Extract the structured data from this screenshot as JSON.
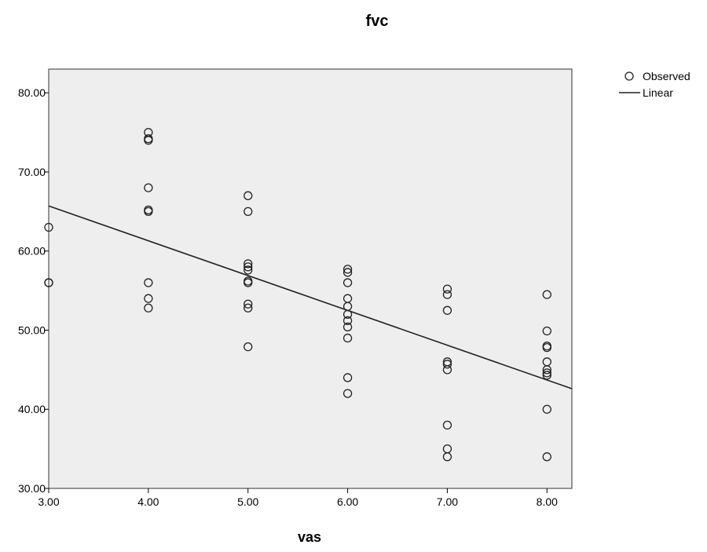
{
  "chart_data": {
    "type": "scatter",
    "title": "fvc",
    "xlabel": "vas",
    "ylabel": "",
    "xlim": [
      3.0,
      8.25
    ],
    "ylim": [
      30.0,
      83.0
    ],
    "x_ticks": [
      3.0,
      4.0,
      5.0,
      6.0,
      7.0,
      8.0
    ],
    "x_tick_labels": [
      "3.00",
      "4.00",
      "5.00",
      "6.00",
      "7.00",
      "8.00"
    ],
    "y_ticks": [
      30.0,
      40.0,
      50.0,
      60.0,
      70.0,
      80.0
    ],
    "y_tick_labels": [
      "30.00",
      "40.00",
      "50.00",
      "60.00",
      "70.00",
      "80.00"
    ],
    "plot_background": "#eeeeee",
    "grid": false,
    "legend_position": "top-right",
    "legend": [
      "Observed",
      "Linear"
    ],
    "series": [
      {
        "name": "Observed",
        "marker": "open-circle",
        "points": [
          [
            3,
            63
          ],
          [
            3,
            56
          ],
          [
            3,
            56
          ],
          [
            4,
            75
          ],
          [
            4,
            74.2
          ],
          [
            4,
            74
          ],
          [
            4,
            68
          ],
          [
            4,
            65.2
          ],
          [
            4,
            65
          ],
          [
            4,
            56
          ],
          [
            4,
            54
          ],
          [
            4,
            52.8
          ],
          [
            5,
            67
          ],
          [
            5,
            65
          ],
          [
            5,
            58.4
          ],
          [
            5,
            58
          ],
          [
            5,
            57.6
          ],
          [
            5,
            56.2
          ],
          [
            5,
            56
          ],
          [
            5,
            53.3
          ],
          [
            5,
            52.8
          ],
          [
            5,
            47.9
          ],
          [
            6,
            57.7
          ],
          [
            6,
            57.3
          ],
          [
            6,
            56
          ],
          [
            6,
            54
          ],
          [
            6,
            53
          ],
          [
            6,
            52
          ],
          [
            6,
            51.2
          ],
          [
            6,
            50.4
          ],
          [
            6,
            49
          ],
          [
            6,
            44
          ],
          [
            6,
            42
          ],
          [
            7,
            55.2
          ],
          [
            7,
            54.5
          ],
          [
            7,
            52.5
          ],
          [
            7,
            46
          ],
          [
            7,
            45.7
          ],
          [
            7,
            45
          ],
          [
            7,
            38
          ],
          [
            7,
            35
          ],
          [
            7,
            34
          ],
          [
            8,
            54.5
          ],
          [
            8,
            49.9
          ],
          [
            8,
            48
          ],
          [
            8,
            47.8
          ],
          [
            8,
            46
          ],
          [
            8,
            45
          ],
          [
            8,
            44.6
          ],
          [
            8,
            44.3
          ],
          [
            8,
            40
          ],
          [
            8,
            34
          ]
        ]
      },
      {
        "name": "Linear",
        "type": "line",
        "points": [
          [
            3.0,
            65.7
          ],
          [
            8.25,
            42.6
          ]
        ]
      }
    ]
  }
}
